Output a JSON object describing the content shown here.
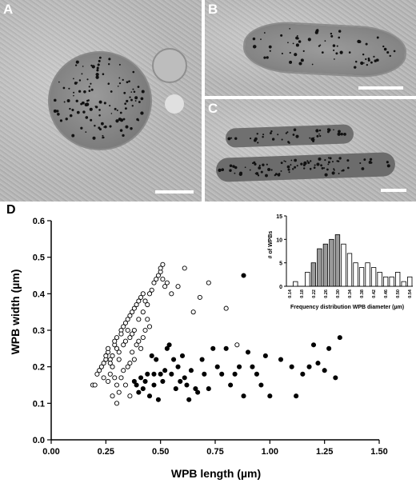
{
  "panels": {
    "a": {
      "label": "A"
    },
    "b": {
      "label": "B"
    },
    "c": {
      "label": "C"
    },
    "d": {
      "label": "D"
    }
  },
  "chart_data": [
    {
      "type": "scatter",
      "title": "",
      "xlabel": "WPB length (µm)",
      "ylabel": "WPB width (µm)",
      "xlim": [
        0.0,
        1.5
      ],
      "ylim": [
        0.0,
        0.6
      ],
      "xticks": [
        "0.00",
        "0.25",
        "0.50",
        "0.75",
        "1.00",
        "1.25",
        "1.50"
      ],
      "yticks": [
        "0.0",
        "0.1",
        "0.2",
        "0.3",
        "0.4",
        "0.5",
        "0.6"
      ],
      "grid": false,
      "series": [
        {
          "marker": "open-circle",
          "points": [
            [
              0.19,
              0.15
            ],
            [
              0.2,
              0.15
            ],
            [
              0.21,
              0.18
            ],
            [
              0.22,
              0.19
            ],
            [
              0.23,
              0.2
            ],
            [
              0.24,
              0.21
            ],
            [
              0.25,
              0.22
            ],
            [
              0.25,
              0.23
            ],
            [
              0.26,
              0.24
            ],
            [
              0.26,
              0.25
            ],
            [
              0.27,
              0.22
            ],
            [
              0.27,
              0.21
            ],
            [
              0.28,
              0.2
            ],
            [
              0.28,
              0.23
            ],
            [
              0.29,
              0.26
            ],
            [
              0.29,
              0.27
            ],
            [
              0.3,
              0.28
            ],
            [
              0.3,
              0.25
            ],
            [
              0.31,
              0.24
            ],
            [
              0.31,
              0.22
            ],
            [
              0.32,
              0.3
            ],
            [
              0.32,
              0.29
            ],
            [
              0.33,
              0.31
            ],
            [
              0.33,
              0.26
            ],
            [
              0.34,
              0.27
            ],
            [
              0.34,
              0.32
            ],
            [
              0.35,
              0.33
            ],
            [
              0.35,
              0.3
            ],
            [
              0.36,
              0.34
            ],
            [
              0.36,
              0.28
            ],
            [
              0.37,
              0.35
            ],
            [
              0.37,
              0.29
            ],
            [
              0.38,
              0.36
            ],
            [
              0.38,
              0.3
            ],
            [
              0.39,
              0.37
            ],
            [
              0.4,
              0.38
            ],
            [
              0.4,
              0.33
            ],
            [
              0.41,
              0.39
            ],
            [
              0.42,
              0.4
            ],
            [
              0.42,
              0.35
            ],
            [
              0.43,
              0.38
            ],
            [
              0.44,
              0.37
            ],
            [
              0.45,
              0.4
            ],
            [
              0.46,
              0.41
            ],
            [
              0.47,
              0.43
            ],
            [
              0.48,
              0.44
            ],
            [
              0.49,
              0.45
            ],
            [
              0.5,
              0.46
            ],
            [
              0.5,
              0.47
            ],
            [
              0.51,
              0.48
            ],
            [
              0.51,
              0.44
            ],
            [
              0.52,
              0.42
            ],
            [
              0.53,
              0.43
            ],
            [
              0.55,
              0.4
            ],
            [
              0.58,
              0.42
            ],
            [
              0.61,
              0.47
            ],
            [
              0.65,
              0.35
            ],
            [
              0.68,
              0.39
            ],
            [
              0.72,
              0.43
            ],
            [
              0.8,
              0.36
            ],
            [
              0.85,
              0.26
            ],
            [
              0.24,
              0.17
            ],
            [
              0.26,
              0.16
            ],
            [
              0.27,
              0.18
            ],
            [
              0.29,
              0.17
            ],
            [
              0.3,
              0.15
            ],
            [
              0.3,
              0.1
            ],
            [
              0.31,
              0.13
            ],
            [
              0.32,
              0.17
            ],
            [
              0.33,
              0.19
            ],
            [
              0.35,
              0.2
            ],
            [
              0.36,
              0.21
            ],
            [
              0.37,
              0.24
            ],
            [
              0.38,
              0.22
            ],
            [
              0.39,
              0.26
            ],
            [
              0.4,
              0.27
            ],
            [
              0.41,
              0.25
            ],
            [
              0.42,
              0.28
            ],
            [
              0.43,
              0.3
            ],
            [
              0.44,
              0.33
            ],
            [
              0.45,
              0.31
            ],
            [
              0.28,
              0.12
            ],
            [
              0.34,
              0.15
            ],
            [
              0.36,
              0.12
            ]
          ]
        },
        {
          "marker": "filled-circle",
          "points": [
            [
              0.38,
              0.16
            ],
            [
              0.39,
              0.15
            ],
            [
              0.4,
              0.13
            ],
            [
              0.41,
              0.17
            ],
            [
              0.42,
              0.14
            ],
            [
              0.43,
              0.16
            ],
            [
              0.44,
              0.18
            ],
            [
              0.45,
              0.12
            ],
            [
              0.46,
              0.23
            ],
            [
              0.47,
              0.18
            ],
            [
              0.47,
              0.15
            ],
            [
              0.48,
              0.22
            ],
            [
              0.49,
              0.11
            ],
            [
              0.5,
              0.18
            ],
            [
              0.51,
              0.16
            ],
            [
              0.52,
              0.19
            ],
            [
              0.53,
              0.25
            ],
            [
              0.54,
              0.26
            ],
            [
              0.55,
              0.18
            ],
            [
              0.56,
              0.22
            ],
            [
              0.57,
              0.14
            ],
            [
              0.58,
              0.2
            ],
            [
              0.59,
              0.16
            ],
            [
              0.6,
              0.23
            ],
            [
              0.61,
              0.17
            ],
            [
              0.62,
              0.15
            ],
            [
              0.63,
              0.11
            ],
            [
              0.64,
              0.19
            ],
            [
              0.66,
              0.14
            ],
            [
              0.67,
              0.13
            ],
            [
              0.69,
              0.22
            ],
            [
              0.7,
              0.18
            ],
            [
              0.72,
              0.14
            ],
            [
              0.74,
              0.25
            ],
            [
              0.76,
              0.2
            ],
            [
              0.78,
              0.18
            ],
            [
              0.8,
              0.25
            ],
            [
              0.82,
              0.15
            ],
            [
              0.84,
              0.18
            ],
            [
              0.86,
              0.2
            ],
            [
              0.88,
              0.45
            ],
            [
              0.9,
              0.24
            ],
            [
              0.92,
              0.2
            ],
            [
              0.94,
              0.18
            ],
            [
              0.96,
              0.15
            ],
            [
              1.0,
              0.12
            ],
            [
              1.05,
              0.22
            ],
            [
              1.12,
              0.12
            ],
            [
              1.15,
              0.18
            ],
            [
              1.18,
              0.2
            ],
            [
              1.2,
              0.26
            ],
            [
              1.22,
              0.21
            ],
            [
              1.25,
              0.19
            ],
            [
              1.27,
              0.25
            ],
            [
              1.3,
              0.17
            ],
            [
              1.32,
              0.28
            ],
            [
              0.88,
              0.12
            ],
            [
              0.98,
              0.23
            ],
            [
              1.1,
              0.2
            ]
          ]
        }
      ]
    },
    {
      "type": "bar",
      "title": "",
      "xlabel": "Frequency distribution WPB diameter (µm)",
      "ylabel": "# of WPBs",
      "ylim": [
        0,
        15
      ],
      "yticks": [
        "0",
        "5",
        "10",
        "15"
      ],
      "categories": [
        "0.14",
        "0.16",
        "0.18",
        "0.20",
        "0.22",
        "0.24",
        "0.26",
        "0.28",
        "0.30",
        "0.32",
        "0.34",
        "0.36",
        "0.38",
        "0.40",
        "0.42",
        "0.44",
        "0.46",
        "0.48",
        "0.50",
        "0.52",
        "0.54"
      ],
      "xtick_labels": [
        "0.14",
        "0.18",
        "0.22",
        "0.26",
        "0.30",
        "0.34",
        "0.38",
        "0.42",
        "0.46",
        "0.50",
        "0.54"
      ],
      "series": [
        {
          "fill": "mixed",
          "values": [
            0,
            1,
            0,
            3,
            5,
            8,
            9,
            10,
            11,
            9,
            7,
            5,
            4,
            5,
            4,
            3,
            2,
            2,
            3,
            1,
            2
          ],
          "filled_flags": [
            false,
            false,
            false,
            false,
            true,
            true,
            true,
            true,
            true,
            false,
            false,
            false,
            false,
            false,
            false,
            false,
            false,
            false,
            false,
            false,
            false
          ]
        }
      ]
    }
  ]
}
